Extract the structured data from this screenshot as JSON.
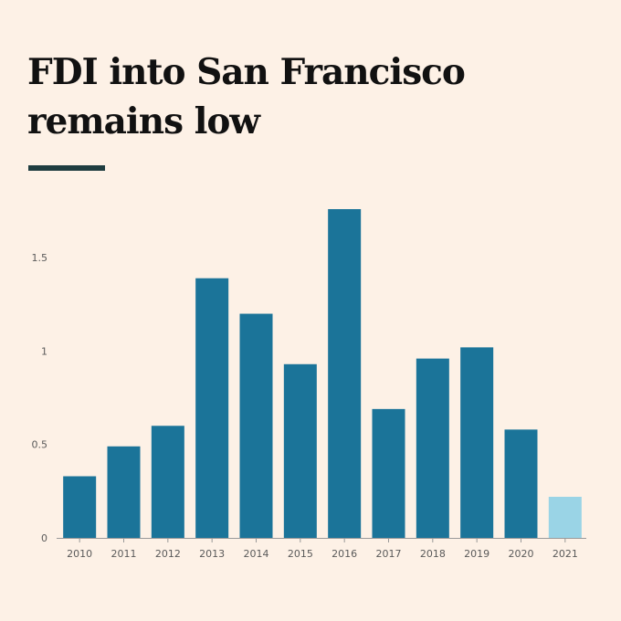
{
  "title_lines": [
    "FDI into San Francisco",
    "remains low"
  ],
  "colors": {
    "background": "#fdf1e6",
    "bar": "#1b7499",
    "bar_highlight": "#9ad4e6",
    "accent": "#1f3d40",
    "axis": "#999999"
  },
  "chart_data": {
    "type": "bar",
    "title": "FDI into San Francisco remains low",
    "xlabel": "",
    "ylabel": "",
    "categories": [
      "2010",
      "2011",
      "2012",
      "2013",
      "2014",
      "2015",
      "2016",
      "2017",
      "2018",
      "2019",
      "2020",
      "2021"
    ],
    "values": [
      0.33,
      0.49,
      0.6,
      1.39,
      1.2,
      0.93,
      1.76,
      0.69,
      0.96,
      1.02,
      0.58,
      0.22
    ],
    "highlight": [
      false,
      false,
      false,
      false,
      false,
      false,
      false,
      false,
      false,
      false,
      false,
      true
    ],
    "ylim": [
      0,
      1.8
    ],
    "yticks": [
      0,
      0.5,
      1,
      1.5
    ],
    "ytick_labels": [
      "0",
      "0.5",
      "1",
      "1.5"
    ],
    "grid": false
  }
}
